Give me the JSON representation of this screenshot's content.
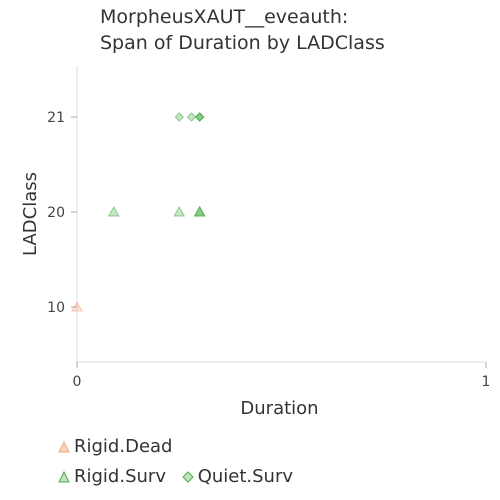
{
  "chart_data": {
    "type": "scatter",
    "title_lines": [
      "MorpheusXAUT__eveauth:",
      "Span of Duration by LADClass"
    ],
    "xlabel": "Duration",
    "ylabel": "LADClass",
    "xlim": [
      0,
      1
    ],
    "x_ticks": [
      "0",
      "1"
    ],
    "y_categories": [
      "10",
      "20",
      "21"
    ],
    "series": [
      {
        "name": "Rigid.Dead",
        "marker": "triangle",
        "color": "#f4a582",
        "points": [
          {
            "x": 0.0,
            "y": "10"
          }
        ]
      },
      {
        "name": "Rigid.Surv",
        "marker": "triangle",
        "color": "#4daf4a",
        "points": [
          {
            "x": 0.09,
            "y": "20"
          },
          {
            "x": 0.25,
            "y": "20"
          },
          {
            "x": 0.3,
            "y": "20"
          },
          {
            "x": 0.3,
            "y": "20"
          },
          {
            "x": 0.3,
            "y": "20"
          }
        ]
      },
      {
        "name": "Quiet.Surv",
        "marker": "diamond",
        "color": "#4daf4a",
        "points": [
          {
            "x": 0.25,
            "y": "21"
          },
          {
            "x": 0.28,
            "y": "21"
          },
          {
            "x": 0.3,
            "y": "21"
          },
          {
            "x": 0.3,
            "y": "21"
          },
          {
            "x": 0.3,
            "y": "21"
          }
        ]
      }
    ],
    "grid": false,
    "legend_position": "bottom-left"
  }
}
